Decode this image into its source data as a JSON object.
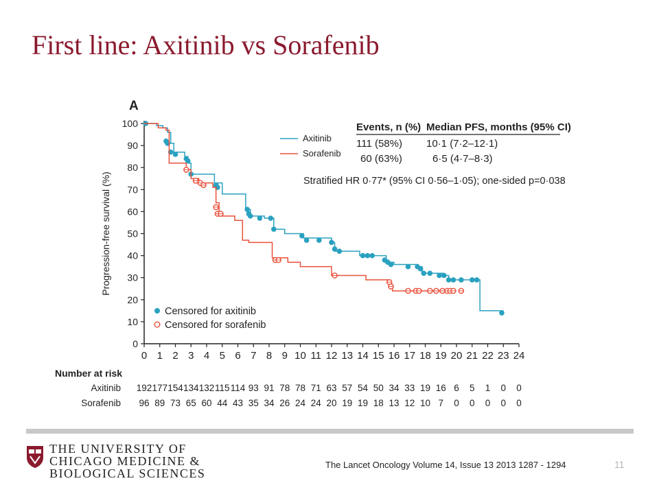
{
  "slide": {
    "title": "First line: Axitinib vs Sorafenib",
    "citation": "The Lancet Oncology Volume 14, Issue 13 2013 1287 - 1294",
    "page_number": "11"
  },
  "logo": {
    "line1": "THE UNIVERSITY OF",
    "line2": "CHICAGO MEDICINE &",
    "line3": "BIOLOGICAL SCIENCES",
    "color": "#8b1a2e"
  },
  "chart_data": {
    "type": "line",
    "panel_label": "A",
    "ylabel": "Progression-free survival (%)",
    "xlim": [
      0,
      24
    ],
    "ylim": [
      0,
      100
    ],
    "x_ticks": [
      0,
      1,
      2,
      3,
      4,
      5,
      6,
      7,
      8,
      9,
      10,
      11,
      12,
      13,
      14,
      15,
      16,
      17,
      18,
      19,
      20,
      21,
      22,
      23,
      24
    ],
    "y_ticks": [
      0,
      10,
      20,
      30,
      40,
      50,
      60,
      70,
      80,
      90,
      100
    ],
    "series": [
      {
        "name": "Axitinib",
        "color": "#2aa1c0",
        "steps": [
          [
            0,
            100
          ],
          [
            0.8,
            99
          ],
          [
            1.2,
            98
          ],
          [
            1.5,
            96
          ],
          [
            1.7,
            91
          ],
          [
            1.9,
            87
          ],
          [
            2.6,
            85
          ],
          [
            2.8,
            82
          ],
          [
            3.0,
            77
          ],
          [
            4.5,
            73
          ],
          [
            5.0,
            68
          ],
          [
            6.5,
            61
          ],
          [
            6.8,
            58
          ],
          [
            7.7,
            57
          ],
          [
            8.3,
            52
          ],
          [
            9.0,
            50
          ],
          [
            10.2,
            48
          ],
          [
            12.0,
            46
          ],
          [
            12.2,
            42
          ],
          [
            12.9,
            42
          ],
          [
            13.8,
            40
          ],
          [
            15.5,
            38
          ],
          [
            15.6,
            37
          ],
          [
            16.0,
            36
          ],
          [
            17.5,
            35
          ],
          [
            17.8,
            32
          ],
          [
            19.2,
            31
          ],
          [
            19.5,
            29
          ],
          [
            20.5,
            29
          ],
          [
            21.5,
            15
          ],
          [
            23,
            15
          ]
        ],
        "censored": [
          [
            0.1,
            100
          ],
          [
            1.4,
            92
          ],
          [
            1.5,
            91
          ],
          [
            1.7,
            87
          ],
          [
            2.0,
            86
          ],
          [
            2.7,
            84
          ],
          [
            2.8,
            83
          ],
          [
            3.0,
            77
          ],
          [
            4.6,
            72
          ],
          [
            4.7,
            71
          ],
          [
            6.6,
            61
          ],
          [
            6.7,
            59
          ],
          [
            6.8,
            58
          ],
          [
            7.4,
            57
          ],
          [
            8.1,
            57
          ],
          [
            8.3,
            52
          ],
          [
            10.1,
            49
          ],
          [
            10.4,
            47
          ],
          [
            11.2,
            47
          ],
          [
            12.0,
            46
          ],
          [
            12.2,
            43
          ],
          [
            12.5,
            42
          ],
          [
            14.0,
            40
          ],
          [
            14.3,
            40
          ],
          [
            14.6,
            40
          ],
          [
            15.4,
            38
          ],
          [
            15.6,
            37
          ],
          [
            15.8,
            36
          ],
          [
            16.9,
            35
          ],
          [
            17.5,
            35
          ],
          [
            17.7,
            34
          ],
          [
            17.9,
            32
          ],
          [
            18.3,
            32
          ],
          [
            18.9,
            31
          ],
          [
            19.2,
            31
          ],
          [
            19.5,
            29
          ],
          [
            19.8,
            29
          ],
          [
            20.3,
            29
          ],
          [
            21.0,
            29
          ],
          [
            21.3,
            29
          ],
          [
            22.9,
            14
          ]
        ]
      },
      {
        "name": "Sorafenib",
        "color": "#e8503a",
        "steps": [
          [
            0,
            100
          ],
          [
            0.9,
            98
          ],
          [
            1.4,
            97
          ],
          [
            1.6,
            82
          ],
          [
            2.5,
            82
          ],
          [
            2.7,
            79
          ],
          [
            3.0,
            75
          ],
          [
            3.5,
            73
          ],
          [
            4.4,
            71
          ],
          [
            4.6,
            64
          ],
          [
            4.8,
            58
          ],
          [
            5.5,
            58
          ],
          [
            5.8,
            56
          ],
          [
            6.0,
            56
          ],
          [
            6.3,
            47
          ],
          [
            6.7,
            46
          ],
          [
            8.0,
            46
          ],
          [
            8.2,
            39
          ],
          [
            9.0,
            39
          ],
          [
            9.2,
            37
          ],
          [
            10.0,
            35
          ],
          [
            12.0,
            31
          ],
          [
            14.2,
            29
          ],
          [
            15.7,
            27
          ],
          [
            15.9,
            24
          ],
          [
            19.9,
            24
          ]
        ],
        "censored": [
          [
            2.7,
            79
          ],
          [
            3.3,
            74
          ],
          [
            3.6,
            73
          ],
          [
            3.8,
            72
          ],
          [
            4.6,
            62
          ],
          [
            4.7,
            59
          ],
          [
            4.9,
            59
          ],
          [
            8.4,
            38
          ],
          [
            8.6,
            38
          ],
          [
            12.2,
            31
          ],
          [
            15.7,
            28
          ],
          [
            15.8,
            26
          ],
          [
            16.9,
            24
          ],
          [
            17.4,
            24
          ],
          [
            17.6,
            24
          ],
          [
            18.3,
            24
          ],
          [
            18.7,
            24
          ],
          [
            19.1,
            24
          ],
          [
            19.4,
            24
          ],
          [
            19.6,
            24
          ],
          [
            19.8,
            24
          ],
          [
            20.3,
            24
          ]
        ]
      }
    ],
    "legend_lines": [
      {
        "label": "Axitinib",
        "color": "#2aa1c0"
      },
      {
        "label": "Sorafenib",
        "color": "#e8503a"
      }
    ],
    "legend_censor": [
      {
        "label": "Censored for axitinib",
        "color": "#2aa1c0"
      },
      {
        "label": "Censored for sorafenib",
        "color": "#e8503a"
      }
    ],
    "stats": {
      "events_header": "Events, n (%)",
      "median_header": "Median PFS, months (95% CI)",
      "axitinib_events": "111 (58%)",
      "axitinib_median": "10·1 (7·2–12·1)",
      "sorafenib_events": "60 (63%)",
      "sorafenib_median": "6·5 (4·7–8·3)",
      "hr": "Stratified HR 0·77* (95% CI 0·56–1·05); one-sided p=0·038"
    },
    "number_at_risk": {
      "title": "Number at risk",
      "times": [
        0,
        1,
        2,
        3,
        4,
        5,
        6,
        7,
        8,
        9,
        10,
        11,
        12,
        13,
        14,
        15,
        16,
        17,
        18,
        19,
        20,
        21,
        22,
        23,
        24
      ],
      "rows": [
        {
          "label": "Axitinib",
          "values": [
            "192",
            "177",
            "154",
            "134",
            "132",
            "115",
            "114",
            "93",
            "91",
            "78",
            "78",
            "71",
            "63",
            "57",
            "54",
            "50",
            "34",
            "33",
            "19",
            "16",
            "6",
            "5",
            "1",
            "0",
            "0"
          ]
        },
        {
          "label": "Sorafenib",
          "values": [
            "96",
            "89",
            "73",
            "65",
            "60",
            "44",
            "43",
            "35",
            "34",
            "26",
            "24",
            "24",
            "20",
            "19",
            "19",
            "18",
            "13",
            "12",
            "10",
            "7",
            "0",
            "0",
            "0",
            "0",
            "0"
          ]
        }
      ]
    }
  }
}
